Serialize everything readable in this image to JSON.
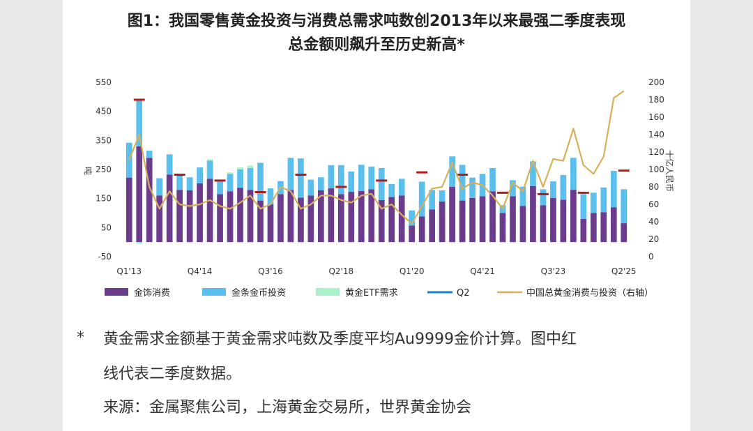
{
  "title": {
    "line1": "图1：我国零售黄金投资与消费总需求吨数创2013年以来最强二季度表现",
    "line2": "总金额则飙升至历史新高*"
  },
  "notes": {
    "asterisk": "*",
    "line1": "黄金需求金额基于黄金需求吨数及季度平均Au9999金价计算。图中红",
    "line2": "线代表二季度数据。",
    "source": "来源：金属聚焦公司，上海黄金交易所，世界黄金协会"
  },
  "colors": {
    "jewellery": "#6b3b8c",
    "bar_coin": "#5bbfee",
    "etf": "#a9f2c9",
    "q2": "#b21b1b",
    "line": "#d9b05a",
    "legend_q2": "#1a82c4"
  },
  "chart_data": {
    "type": "bar",
    "stacked": true,
    "x_ticks": [
      "Q1'13",
      "Q4'14",
      "Q3'16",
      "Q2'18",
      "Q1'20",
      "Q4'21",
      "Q3'23",
      "Q2'25"
    ],
    "y_left": {
      "label": "吨",
      "ticks": [
        550,
        450,
        350,
        250,
        150,
        50,
        -50
      ],
      "ylim": [
        -50,
        550
      ]
    },
    "y_right": {
      "label": "十亿人民币",
      "ticks": [
        200,
        180,
        160,
        140,
        120,
        100,
        80,
        60,
        40,
        20,
        0
      ],
      "ylim": [
        0,
        200
      ]
    },
    "categories": [
      "Q1'13",
      "Q2'13",
      "Q3'13",
      "Q4'13",
      "Q1'14",
      "Q2'14",
      "Q3'14",
      "Q4'14",
      "Q1'15",
      "Q2'15",
      "Q3'15",
      "Q4'15",
      "Q1'16",
      "Q2'16",
      "Q3'16",
      "Q4'16",
      "Q1'17",
      "Q2'17",
      "Q3'17",
      "Q4'17",
      "Q1'18",
      "Q2'18",
      "Q3'18",
      "Q4'18",
      "Q1'19",
      "Q2'19",
      "Q3'19",
      "Q4'19",
      "Q1'20",
      "Q2'20",
      "Q3'20",
      "Q4'20",
      "Q1'21",
      "Q2'21",
      "Q3'21",
      "Q4'21",
      "Q1'22",
      "Q2'22",
      "Q3'22",
      "Q4'22",
      "Q1'23",
      "Q2'23",
      "Q3'23",
      "Q4'23",
      "Q1'24",
      "Q2'24",
      "Q3'24",
      "Q4'24",
      "Q1'25",
      "Q2'25"
    ],
    "series": [
      {
        "name": "金饰消费",
        "values": [
          222,
          330,
          290,
          160,
          232,
          180,
          178,
          202,
          218,
          165,
          175,
          187,
          180,
          143,
          130,
          165,
          180,
          153,
          160,
          178,
          185,
          165,
          173,
          176,
          182,
          145,
          155,
          160,
          57,
          88,
          112,
          140,
          190,
          143,
          152,
          158,
          175,
          100,
          158,
          124,
          193,
          127,
          152,
          146,
          180,
          80,
          100,
          103,
          120,
          65
        ]
      },
      {
        "name": "金条金币投资",
        "values": [
          120,
          160,
          25,
          60,
          70,
          50,
          45,
          55,
          62,
          50,
          60,
          63,
          75,
          130,
          55,
          45,
          110,
          135,
          55,
          45,
          80,
          100,
          70,
          90,
          78,
          110,
          45,
          58,
          52,
          120,
          68,
          38,
          105,
          123,
          70,
          77,
          80,
          27,
          55,
          67,
          85,
          55,
          57,
          85,
          110,
          85,
          70,
          85,
          125,
          117
        ]
      },
      {
        "name": "黄金ETF需求",
        "values": [
          0,
          -5,
          0,
          0,
          0,
          0,
          0,
          0,
          5,
          0,
          5,
          7,
          8,
          0,
          0,
          0,
          0,
          0,
          0,
          0,
          0,
          0,
          0,
          0,
          0,
          0,
          0,
          0,
          0,
          0,
          0,
          0,
          0,
          0,
          0,
          0,
          0,
          0,
          0,
          0,
          0,
          0,
          0,
          0,
          0,
          0,
          0,
          0,
          0,
          0
        ]
      },
      {
        "name": "中国总黄金消费与投资（右轴）",
        "axis": "right",
        "values": [
          111,
          140,
          80,
          55,
          75,
          60,
          58,
          60,
          65,
          58,
          55,
          62,
          70,
          55,
          60,
          80,
          75,
          55,
          60,
          70,
          70,
          65,
          62,
          70,
          72,
          55,
          60,
          48,
          38,
          58,
          78,
          80,
          108,
          78,
          85,
          82,
          70,
          55,
          85,
          75,
          110,
          80,
          112,
          110,
          147,
          105,
          95,
          115,
          182,
          190
        ]
      }
    ],
    "q2_marker_series": "Q2",
    "q2_values": [
      490,
      232,
      212,
      172,
      232,
      190,
      212,
      240,
      232,
      170,
      165,
      170,
      246
    ],
    "q2_categories": [
      "Q2'13",
      "Q2'14",
      "Q2'15",
      "Q2'16",
      "Q2'17",
      "Q2'18",
      "Q2'19",
      "Q2'20",
      "Q2'21",
      "Q2'22",
      "Q2'23",
      "Q2'24",
      "Q2'25"
    ],
    "legend": [
      {
        "name": "金饰消费",
        "type": "bar"
      },
      {
        "name": "金条金币投资",
        "type": "bar"
      },
      {
        "name": "黄金ETF需求",
        "type": "bar"
      },
      {
        "name": "Q2",
        "type": "marker"
      },
      {
        "name": "中国总黄金消费与投资（右轴）",
        "type": "line"
      }
    ],
    "legend_position": "bottom",
    "grid": false
  }
}
